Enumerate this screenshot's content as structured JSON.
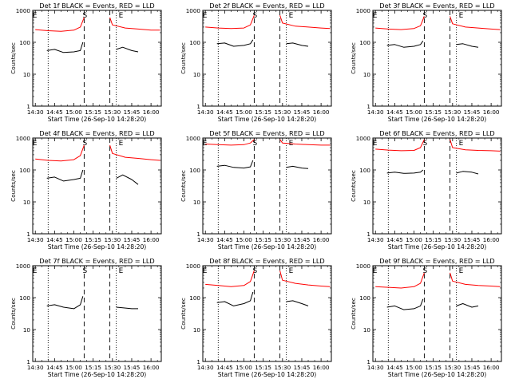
{
  "chart_data": [
    {
      "type": "line",
      "title": "Det 1f BLACK = Events, RED = LLD",
      "xlabel": "Start Time (26-Sep-10 14:28:20)",
      "ylabel": "Counts/sec",
      "x_ticks": [
        "14:30",
        "14:45",
        "15:00",
        "15:15",
        "15:30",
        "15:45",
        "16:00"
      ],
      "y_ticks": [
        "1",
        "10",
        "100",
        "1000"
      ],
      "yscale": "log",
      "ylim": [
        1,
        1000
      ],
      "markers": [
        "E",
        "S",
        "E"
      ],
      "series": [
        {
          "color": "#ff0000",
          "segments": [
            {
              "x": [
                "14:30",
                "14:40",
                "14:50",
                "15:00",
                "15:05",
                "15:08"
              ],
              "values": [
                250,
                230,
                220,
                240,
                300,
                600
              ]
            },
            {
              "x": [
                "15:28",
                "15:30",
                "15:40",
                "15:50",
                "16:00",
                "16:07"
              ],
              "values": [
                600,
                350,
                280,
                260,
                240,
                240
              ]
            }
          ]
        },
        {
          "color": "#000000",
          "segments": [
            {
              "x": [
                "14:39",
                "14:45",
                "14:52",
                "15:00",
                "15:05",
                "15:07"
              ],
              "values": [
                55,
                60,
                48,
                50,
                55,
                100
              ]
            },
            {
              "x": [
                "15:33",
                "15:38",
                "15:45",
                "15:50"
              ],
              "values": [
                60,
                70,
                55,
                50
              ]
            }
          ]
        }
      ]
    },
    {
      "type": "line",
      "title": "Det 2f BLACK = Events, RED = LLD",
      "xlabel": "Start Time (26-Sep-10 14:28:20)",
      "ylabel": "Counts/sec",
      "x_ticks": [
        "14:30",
        "14:45",
        "15:00",
        "15:15",
        "15:30",
        "15:45",
        "16:00"
      ],
      "y_ticks": [
        "1",
        "10",
        "100",
        "1000"
      ],
      "yscale": "log",
      "ylim": [
        1,
        1000
      ],
      "markers": [
        "E",
        "S",
        "E"
      ],
      "series": [
        {
          "color": "#ff0000",
          "segments": [
            {
              "x": [
                "14:30",
                "14:40",
                "14:50",
                "15:00",
                "15:05",
                "15:08"
              ],
              "values": [
                300,
                280,
                270,
                280,
                350,
                700
              ]
            },
            {
              "x": [
                "15:28",
                "15:30",
                "15:40",
                "15:50",
                "16:00",
                "16:07"
              ],
              "values": [
                700,
                400,
                320,
                300,
                280,
                270
              ]
            }
          ]
        },
        {
          "color": "#000000",
          "segments": [
            {
              "x": [
                "14:39",
                "14:45",
                "14:52",
                "15:00",
                "15:05",
                "15:07"
              ],
              "values": [
                90,
                95,
                75,
                80,
                90,
                120
              ]
            },
            {
              "x": [
                "15:33",
                "15:38",
                "15:45",
                "15:50"
              ],
              "values": [
                90,
                95,
                80,
                75
              ]
            }
          ]
        }
      ]
    },
    {
      "type": "line",
      "title": "Det 3f BLACK = Events, RED = LLD",
      "xlabel": "Start Time (26-Sep-10 14:28:20)",
      "ylabel": "Counts/sec",
      "x_ticks": [
        "14:30",
        "14:45",
        "15:00",
        "15:15",
        "15:30",
        "15:45",
        "16:00"
      ],
      "y_ticks": [
        "1",
        "10",
        "100",
        "1000"
      ],
      "yscale": "log",
      "ylim": [
        1,
        1000
      ],
      "markers": [
        "E",
        "S",
        "E"
      ],
      "series": [
        {
          "color": "#ff0000",
          "segments": [
            {
              "x": [
                "14:30",
                "14:40",
                "14:50",
                "15:00",
                "15:05",
                "15:08"
              ],
              "values": [
                280,
                260,
                250,
                270,
                330,
                650
              ]
            },
            {
              "x": [
                "15:28",
                "15:30",
                "15:40",
                "15:50",
                "16:00",
                "16:07"
              ],
              "values": [
                650,
                380,
                300,
                280,
                260,
                250
              ]
            }
          ]
        },
        {
          "color": "#000000",
          "segments": [
            {
              "x": [
                "14:39",
                "14:45",
                "14:52",
                "15:00",
                "15:05",
                "15:07"
              ],
              "values": [
                80,
                85,
                70,
                75,
                85,
                110
              ]
            },
            {
              "x": [
                "15:33",
                "15:38",
                "15:45",
                "15:50"
              ],
              "values": [
                85,
                90,
                75,
                70
              ]
            }
          ]
        }
      ]
    },
    {
      "type": "line",
      "title": "Det 4f BLACK = Events, RED = LLD",
      "xlabel": "Start Time (26-Sep-10 14:28:20)",
      "ylabel": "Counts/sec",
      "x_ticks": [
        "14:30",
        "14:45",
        "15:00",
        "15:15",
        "15:30",
        "15:45",
        "16:00"
      ],
      "y_ticks": [
        "1",
        "10",
        "100",
        "1000"
      ],
      "yscale": "log",
      "ylim": [
        1,
        1000
      ],
      "markers": [
        "E",
        "S",
        "E"
      ],
      "series": [
        {
          "color": "#ff0000",
          "segments": [
            {
              "x": [
                "14:30",
                "14:40",
                "14:50",
                "15:00",
                "15:05",
                "15:08"
              ],
              "values": [
                220,
                200,
                190,
                210,
                280,
                600
              ]
            },
            {
              "x": [
                "15:28",
                "15:30",
                "15:40",
                "15:50",
                "16:00",
                "16:07"
              ],
              "values": [
                600,
                330,
                250,
                230,
                210,
                200
              ]
            }
          ]
        },
        {
          "color": "#000000",
          "segments": [
            {
              "x": [
                "14:39",
                "14:45",
                "14:52",
                "15:00",
                "15:05",
                "15:07"
              ],
              "values": [
                55,
                60,
                45,
                50,
                55,
                100
              ]
            },
            {
              "x": [
                "15:33",
                "15:38",
                "15:45",
                "15:50"
              ],
              "values": [
                55,
                70,
                50,
                35
              ]
            }
          ]
        }
      ]
    },
    {
      "type": "line",
      "title": "Det 5f BLACK = Events, RED = LLD",
      "xlabel": "Start Time (26-Sep-10 14:28:20)",
      "ylabel": "Counts/sec",
      "x_ticks": [
        "14:30",
        "14:45",
        "15:00",
        "15:15",
        "15:30",
        "15:45",
        "16:00"
      ],
      "y_ticks": [
        "1",
        "10",
        "100",
        "1000"
      ],
      "yscale": "log",
      "ylim": [
        1,
        1000
      ],
      "markers": [
        "E",
        "S",
        "E"
      ],
      "series": [
        {
          "color": "#ff0000",
          "segments": [
            {
              "x": [
                "14:30",
                "14:40",
                "14:50",
                "15:00",
                "15:05",
                "15:08"
              ],
              "values": [
                650,
                620,
                600,
                620,
                700,
                900
              ]
            },
            {
              "x": [
                "15:28",
                "15:30",
                "15:40",
                "15:50",
                "16:00",
                "16:07"
              ],
              "values": [
                900,
                700,
                650,
                620,
                600,
                600
              ]
            }
          ]
        },
        {
          "color": "#000000",
          "segments": [
            {
              "x": [
                "14:39",
                "14:45",
                "14:52",
                "15:00",
                "15:05",
                "15:07"
              ],
              "values": [
                130,
                140,
                120,
                115,
                125,
                200
              ]
            },
            {
              "x": [
                "15:33",
                "15:38",
                "15:45",
                "15:50"
              ],
              "values": [
                120,
                130,
                115,
                110
              ]
            }
          ]
        }
      ]
    },
    {
      "type": "line",
      "title": "Det 6f BLACK = Events, RED = LLD",
      "xlabel": "Start Time (26-Sep-10 14:28:20)",
      "ylabel": "Counts/sec",
      "x_ticks": [
        "14:30",
        "14:45",
        "15:00",
        "15:15",
        "15:30",
        "15:45",
        "16:00"
      ],
      "y_ticks": [
        "1",
        "10",
        "100",
        "1000"
      ],
      "yscale": "log",
      "ylim": [
        1,
        1000
      ],
      "markers": [
        "E",
        "S",
        "E"
      ],
      "series": [
        {
          "color": "#ff0000",
          "segments": [
            {
              "x": [
                "14:30",
                "14:40",
                "14:50",
                "15:00",
                "15:05",
                "15:08"
              ],
              "values": [
                450,
                420,
                400,
                410,
                500,
                900
              ]
            },
            {
              "x": [
                "15:28",
                "15:30",
                "15:40",
                "15:50",
                "16:00",
                "16:07"
              ],
              "values": [
                900,
                500,
                430,
                410,
                400,
                390
              ]
            }
          ]
        },
        {
          "color": "#000000",
          "segments": [
            {
              "x": [
                "14:39",
                "14:45",
                "14:52",
                "15:00",
                "15:05",
                "15:07"
              ],
              "values": [
                80,
                85,
                78,
                80,
                85,
                100
              ]
            },
            {
              "x": [
                "15:33",
                "15:38",
                "15:45",
                "15:50"
              ],
              "values": [
                80,
                90,
                85,
                75
              ]
            }
          ]
        }
      ]
    },
    {
      "type": "line",
      "title": "Det 7f BLACK = Events, RED = LLD",
      "xlabel": "Start Time (26-Sep-10 14:28:20)",
      "ylabel": "Counts/sec",
      "x_ticks": [
        "14:30",
        "14:45",
        "15:00",
        "15:15",
        "15:30",
        "15:45",
        "16:00"
      ],
      "y_ticks": [
        "1",
        "10",
        "100",
        "1000"
      ],
      "yscale": "log",
      "ylim": [
        1,
        1000
      ],
      "markers": [
        "E",
        "S",
        "E"
      ],
      "series": [
        {
          "color": "#ff0000",
          "segments": [
            {
              "x": [
                "14:30",
                "14:40",
                "14:50",
                "15:00",
                "15:05",
                "15:08"
              ],
              "values": [
                1000,
                1000,
                1000,
                1000,
                1000,
                1000
              ]
            },
            {
              "x": [
                "15:28",
                "15:30",
                "15:40",
                "15:50",
                "16:00",
                "16:07"
              ],
              "values": [
                1000,
                1000,
                1000,
                1000,
                1000,
                1000
              ]
            }
          ]
        },
        {
          "color": "#000000",
          "segments": [
            {
              "x": [
                "14:39",
                "14:45",
                "14:52",
                "15:00",
                "15:05",
                "15:07"
              ],
              "values": [
                55,
                60,
                50,
                45,
                60,
                110
              ]
            },
            {
              "x": [
                "15:33",
                "15:38",
                "15:45",
                "15:50"
              ],
              "values": [
                50,
                48,
                45,
                45
              ]
            }
          ]
        }
      ]
    },
    {
      "type": "line",
      "title": "Det 8f BLACK = Events, RED = LLD",
      "xlabel": "Start Time (26-Sep-10 14:28:20)",
      "ylabel": "Counts/sec",
      "x_ticks": [
        "14:30",
        "14:45",
        "15:00",
        "15:15",
        "15:30",
        "15:45",
        "16:00"
      ],
      "y_ticks": [
        "1",
        "10",
        "100",
        "1000"
      ],
      "yscale": "log",
      "ylim": [
        1,
        1000
      ],
      "markers": [
        "E",
        "S",
        "E"
      ],
      "series": [
        {
          "color": "#ff0000",
          "segments": [
            {
              "x": [
                "14:30",
                "14:40",
                "14:50",
                "15:00",
                "15:05",
                "15:08"
              ],
              "values": [
                260,
                240,
                220,
                240,
                320,
                700
              ]
            },
            {
              "x": [
                "15:28",
                "15:30",
                "15:40",
                "15:50",
                "16:00",
                "16:07"
              ],
              "values": [
                700,
                350,
                280,
                250,
                230,
                220
              ]
            }
          ]
        },
        {
          "color": "#000000",
          "segments": [
            {
              "x": [
                "14:39",
                "14:45",
                "14:52",
                "15:00",
                "15:05",
                "15:07"
              ],
              "values": [
                70,
                75,
                55,
                65,
                80,
                150
              ]
            },
            {
              "x": [
                "15:33",
                "15:38",
                "15:45",
                "15:50"
              ],
              "values": [
                75,
                80,
                65,
                55
              ]
            }
          ]
        }
      ]
    },
    {
      "type": "line",
      "title": "Det 9f BLACK = Events, RED = LLD",
      "xlabel": "Start Time (26-Sep-10 14:28:20)",
      "ylabel": "Counts/sec",
      "x_ticks": [
        "14:30",
        "14:45",
        "15:00",
        "15:15",
        "15:30",
        "15:45",
        "16:00"
      ],
      "y_ticks": [
        "1",
        "10",
        "100",
        "1000"
      ],
      "yscale": "log",
      "ylim": [
        1,
        1000
      ],
      "markers": [
        "E",
        "S",
        "E"
      ],
      "series": [
        {
          "color": "#ff0000",
          "segments": [
            {
              "x": [
                "14:30",
                "14:40",
                "14:50",
                "15:00",
                "15:05",
                "15:08"
              ],
              "values": [
                220,
                210,
                200,
                220,
                280,
                600
              ]
            },
            {
              "x": [
                "15:28",
                "15:30",
                "15:40",
                "15:50",
                "16:00",
                "16:07"
              ],
              "values": [
                600,
                330,
                260,
                240,
                230,
                220
              ]
            }
          ]
        },
        {
          "color": "#000000",
          "segments": [
            {
              "x": [
                "14:39",
                "14:45",
                "14:52",
                "15:00",
                "15:05",
                "15:07"
              ],
              "values": [
                50,
                55,
                42,
                45,
                55,
                90
              ]
            },
            {
              "x": [
                "15:33",
                "15:38",
                "15:45",
                "15:50"
              ],
              "values": [
                55,
                65,
                50,
                55
              ]
            }
          ]
        }
      ]
    }
  ]
}
